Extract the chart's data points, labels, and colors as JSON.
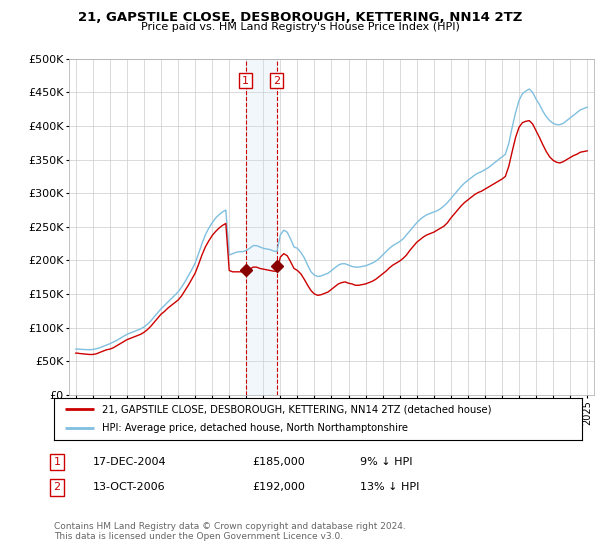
{
  "title": "21, GAPSTILE CLOSE, DESBOROUGH, KETTERING, NN14 2TZ",
  "subtitle": "Price paid vs. HM Land Registry's House Price Index (HPI)",
  "legend_line1": "21, GAPSTILE CLOSE, DESBOROUGH, KETTERING, NN14 2TZ (detached house)",
  "legend_line2": "HPI: Average price, detached house, North Northamptonshire",
  "sale1_label": "1",
  "sale1_date": "17-DEC-2004",
  "sale1_price": "£185,000",
  "sale1_hpi": "9% ↓ HPI",
  "sale2_label": "2",
  "sale2_date": "13-OCT-2006",
  "sale2_price": "£192,000",
  "sale2_hpi": "13% ↓ HPI",
  "footer": "Contains HM Land Registry data © Crown copyright and database right 2024.\nThis data is licensed under the Open Government Licence v3.0.",
  "hpi_color": "#7fbfdf",
  "price_color": "#cc0000",
  "sale_marker_color": "#880000",
  "vline_color": "#cc0000",
  "highlight_color": "#cce0f0",
  "ylim": [
    0,
    500000
  ],
  "yticks": [
    0,
    50000,
    100000,
    150000,
    200000,
    250000,
    300000,
    350000,
    400000,
    450000,
    500000
  ],
  "sale1_x": 2004.96,
  "sale1_y": 185000,
  "sale2_x": 2006.79,
  "sale2_y": 192000,
  "xmin": 1994.6,
  "xmax": 2025.4,
  "years_hpi": [
    1995.0,
    1995.1,
    1995.2,
    1995.4,
    1995.6,
    1995.8,
    1996.0,
    1996.2,
    1996.4,
    1996.6,
    1996.8,
    1997.0,
    1997.2,
    1997.4,
    1997.6,
    1997.8,
    1998.0,
    1998.2,
    1998.4,
    1998.6,
    1998.8,
    1999.0,
    1999.2,
    1999.4,
    1999.6,
    1999.8,
    2000.0,
    2000.2,
    2000.4,
    2000.6,
    2000.8,
    2001.0,
    2001.2,
    2001.4,
    2001.6,
    2001.8,
    2002.0,
    2002.2,
    2002.4,
    2002.6,
    2002.8,
    2003.0,
    2003.2,
    2003.4,
    2003.6,
    2003.8,
    2004.0,
    2004.2,
    2004.4,
    2004.6,
    2004.8,
    2005.0,
    2005.2,
    2005.4,
    2005.6,
    2005.8,
    2006.0,
    2006.2,
    2006.4,
    2006.6,
    2006.8,
    2007.0,
    2007.2,
    2007.4,
    2007.6,
    2007.8,
    2008.0,
    2008.2,
    2008.4,
    2008.6,
    2008.8,
    2009.0,
    2009.2,
    2009.4,
    2009.6,
    2009.8,
    2010.0,
    2010.2,
    2010.4,
    2010.6,
    2010.8,
    2011.0,
    2011.2,
    2011.4,
    2011.6,
    2011.8,
    2012.0,
    2012.2,
    2012.4,
    2012.6,
    2012.8,
    2013.0,
    2013.2,
    2013.4,
    2013.6,
    2013.8,
    2014.0,
    2014.2,
    2014.4,
    2014.6,
    2014.8,
    2015.0,
    2015.2,
    2015.4,
    2015.6,
    2015.8,
    2016.0,
    2016.2,
    2016.4,
    2016.6,
    2016.8,
    2017.0,
    2017.2,
    2017.4,
    2017.6,
    2017.8,
    2018.0,
    2018.2,
    2018.4,
    2018.6,
    2018.8,
    2019.0,
    2019.2,
    2019.4,
    2019.6,
    2019.8,
    2020.0,
    2020.2,
    2020.4,
    2020.6,
    2020.8,
    2021.0,
    2021.2,
    2021.4,
    2021.6,
    2021.8,
    2022.0,
    2022.2,
    2022.4,
    2022.6,
    2022.8,
    2023.0,
    2023.2,
    2023.4,
    2023.6,
    2023.8,
    2024.0,
    2024.2,
    2024.4,
    2024.6,
    2024.8,
    2025.0
  ],
  "hpi_values": [
    68000,
    68200,
    67800,
    67500,
    67200,
    67000,
    67500,
    68500,
    70000,
    72000,
    74000,
    76000,
    78500,
    81000,
    84000,
    87000,
    90000,
    92000,
    94000,
    96000,
    98000,
    101000,
    105000,
    110000,
    116000,
    122000,
    128000,
    133000,
    138000,
    143000,
    148000,
    153000,
    160000,
    168000,
    177000,
    186000,
    196000,
    210000,
    225000,
    238000,
    248000,
    256000,
    263000,
    268000,
    272000,
    275000,
    208000,
    210000,
    212000,
    213000,
    213000,
    215000,
    218000,
    222000,
    222000,
    220000,
    218000,
    217000,
    216000,
    214000,
    213000,
    238000,
    245000,
    242000,
    232000,
    220000,
    218000,
    212000,
    204000,
    193000,
    183000,
    178000,
    176000,
    177000,
    179000,
    181000,
    185000,
    189000,
    193000,
    195000,
    195000,
    193000,
    191000,
    190000,
    190000,
    191000,
    192000,
    194000,
    196000,
    199000,
    203000,
    208000,
    213000,
    218000,
    222000,
    225000,
    228000,
    232000,
    238000,
    244000,
    250000,
    256000,
    261000,
    265000,
    268000,
    270000,
    272000,
    274000,
    277000,
    281000,
    286000,
    292000,
    298000,
    304000,
    310000,
    315000,
    319000,
    323000,
    327000,
    330000,
    332000,
    335000,
    338000,
    342000,
    346000,
    350000,
    354000,
    358000,
    374000,
    398000,
    420000,
    438000,
    448000,
    452000,
    455000,
    450000,
    440000,
    432000,
    422000,
    414000,
    408000,
    404000,
    402000,
    402000,
    404000,
    408000,
    412000,
    416000,
    420000,
    424000,
    426000,
    428000
  ],
  "prop_values": [
    62000,
    62000,
    61500,
    61000,
    60500,
    60000,
    60000,
    61000,
    63000,
    65000,
    67000,
    68000,
    70000,
    73000,
    76000,
    79000,
    82000,
    84000,
    86000,
    88000,
    90000,
    93000,
    97000,
    102000,
    108000,
    114000,
    120000,
    124000,
    129000,
    133000,
    137000,
    141000,
    147000,
    155000,
    163000,
    172000,
    181000,
    194000,
    208000,
    220000,
    229000,
    237000,
    243000,
    248000,
    252000,
    255000,
    185000,
    183000,
    183000,
    183000,
    183000,
    185000,
    187000,
    190000,
    190000,
    188000,
    187000,
    186000,
    185000,
    184000,
    184000,
    205000,
    210000,
    207000,
    198000,
    188000,
    185000,
    180000,
    172000,
    163000,
    155000,
    150000,
    148000,
    149000,
    151000,
    153000,
    157000,
    161000,
    165000,
    167000,
    168000,
    166000,
    165000,
    163000,
    163000,
    164000,
    165000,
    167000,
    169000,
    172000,
    176000,
    180000,
    184000,
    189000,
    193000,
    196000,
    199000,
    203000,
    208000,
    215000,
    221000,
    227000,
    231000,
    235000,
    238000,
    240000,
    242000,
    245000,
    248000,
    251000,
    256000,
    263000,
    269000,
    275000,
    281000,
    286000,
    290000,
    294000,
    298000,
    301000,
    303000,
    306000,
    309000,
    312000,
    315000,
    318000,
    321000,
    325000,
    340000,
    362000,
    383000,
    398000,
    405000,
    407000,
    408000,
    403000,
    393000,
    383000,
    372000,
    362000,
    354000,
    349000,
    346000,
    345000,
    347000,
    350000,
    353000,
    356000,
    358000,
    361000,
    362000,
    363000
  ]
}
